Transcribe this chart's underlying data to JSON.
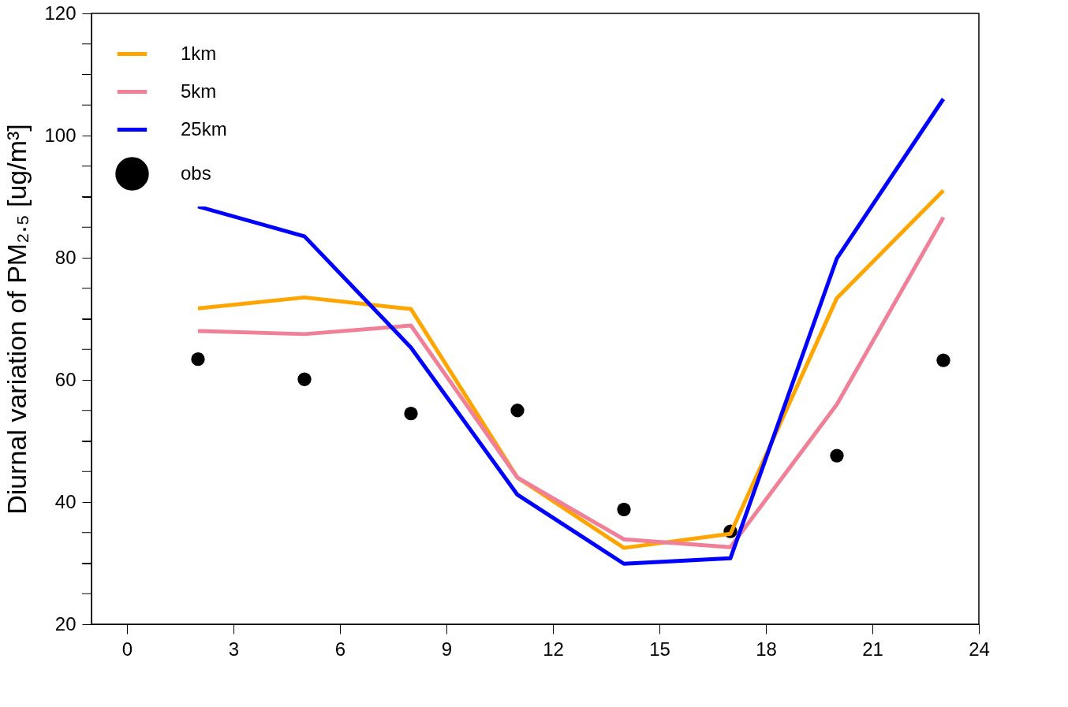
{
  "chart_data": {
    "type": "line",
    "ylabel": "Diurnal variation of PM₂.₅  [ug/m³]",
    "x": [
      2,
      5,
      8,
      11,
      14,
      17,
      20,
      23
    ],
    "series": [
      {
        "name": "1km",
        "color": "#ffa500",
        "values": [
          71.7,
          73.5,
          71.6,
          44,
          32.5,
          34.8,
          73.4,
          91
        ]
      },
      {
        "name": "5km",
        "color": "#f08098",
        "values": [
          68,
          67.5,
          68.9,
          44,
          33.9,
          32.6,
          56,
          86.6
        ]
      },
      {
        "name": "25km",
        "color": "#0000ff",
        "values": [
          88.4,
          83.5,
          65.3,
          41.2,
          29.9,
          30.8,
          79.9,
          106
        ]
      },
      {
        "name": "obs",
        "type": "scatter",
        "marker": "circle",
        "color": "#000000",
        "values": [
          63.4,
          60.1,
          54.5,
          55,
          38.8,
          35.2,
          47.6,
          63.2
        ]
      }
    ],
    "xlim": [
      -1,
      24
    ],
    "xticks": [
      0,
      3,
      6,
      9,
      12,
      15,
      18,
      21,
      24
    ],
    "ylim": [
      20,
      120
    ],
    "yticks": [
      20,
      {
        "value": 25,
        "label": null
      },
      {
        "value": 30,
        "label": null
      },
      {
        "value": 35,
        "label": null
      },
      40,
      {
        "value": 45,
        "label": null
      },
      {
        "value": 50,
        "label": null
      },
      {
        "value": 55,
        "label": null
      },
      60,
      {
        "value": 65,
        "label": null
      },
      {
        "value": 70,
        "label": null
      },
      {
        "value": 75,
        "label": null
      },
      80,
      {
        "value": 85,
        "label": null
      },
      {
        "value": 90,
        "label": null
      },
      {
        "value": 95,
        "label": null
      },
      100,
      {
        "value": 105,
        "label": null
      },
      {
        "value": 110,
        "label": null
      },
      {
        "value": 115,
        "label": null
      },
      120
    ],
    "grid": false,
    "legend": "top left"
  }
}
